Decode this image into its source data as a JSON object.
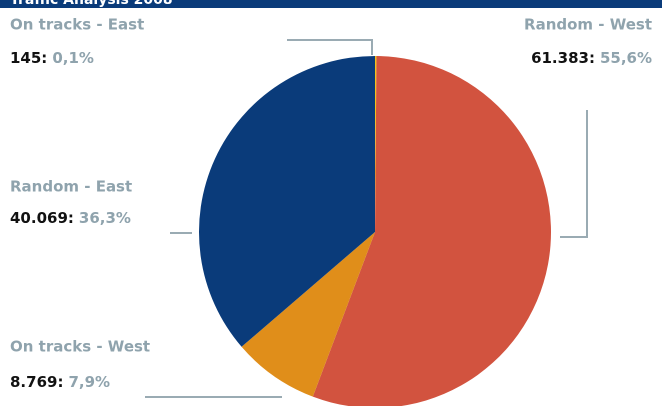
{
  "chart_data": {
    "type": "pie",
    "title": "Traffic Analysis 2008",
    "categories": [
      "On tracks - East",
      "Random - West",
      "On tracks - West",
      "Random - East"
    ],
    "values": [
      145,
      61383,
      8769,
      40069
    ],
    "value_labels": [
      "145:",
      "61.383:",
      "8.769:",
      "40.069:"
    ],
    "percents": [
      0.1,
      55.6,
      7.9,
      36.3
    ],
    "percent_labels": [
      "0,1%",
      "55,6%",
      "7,9%",
      "36,3%"
    ],
    "colors": [
      "#f2c318",
      "#d2533f",
      "#e08e1a",
      "#0a3b7a"
    ]
  }
}
